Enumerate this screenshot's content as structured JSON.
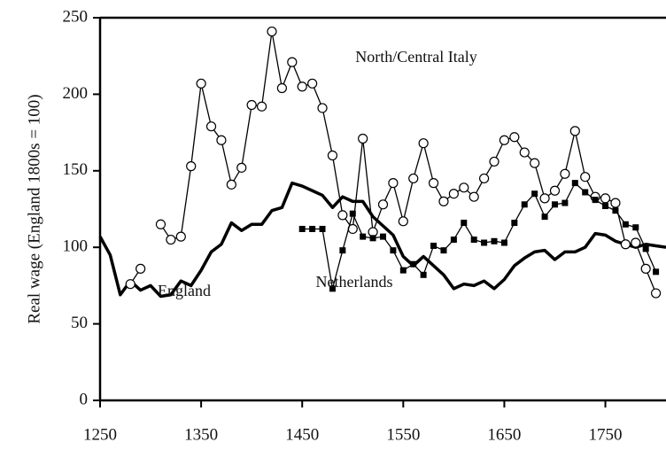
{
  "chart_data": {
    "type": "line",
    "y_label": "Real wage (England 1800s = 100)",
    "xlim": [
      1250,
      1810
    ],
    "ylim": [
      0,
      250
    ],
    "xticks": [
      1250,
      1350,
      1450,
      1550,
      1650,
      1750
    ],
    "yticks": [
      0,
      50,
      100,
      150,
      200,
      250
    ],
    "grid": false,
    "series": [
      {
        "name": "England",
        "color": "#000000",
        "marker": "none",
        "x": [
          1250,
          1260,
          1270,
          1280,
          1290,
          1300,
          1310,
          1320,
          1330,
          1340,
          1350,
          1360,
          1370,
          1380,
          1390,
          1400,
          1410,
          1420,
          1430,
          1440,
          1450,
          1460,
          1470,
          1480,
          1490,
          1500,
          1510,
          1520,
          1530,
          1540,
          1550,
          1560,
          1570,
          1580,
          1590,
          1600,
          1610,
          1620,
          1630,
          1640,
          1650,
          1660,
          1670,
          1680,
          1690,
          1700,
          1710,
          1720,
          1730,
          1740,
          1750,
          1760,
          1770,
          1780,
          1790,
          1800,
          1810
        ],
        "values": [
          107,
          95,
          69,
          78,
          72,
          75,
          68,
          69,
          78,
          75,
          85,
          97,
          102,
          116,
          111,
          115,
          115,
          124,
          126,
          142,
          140,
          137,
          134,
          126,
          133,
          130,
          130,
          120,
          114,
          108,
          94,
          88,
          94,
          88,
          82,
          73,
          76,
          75,
          78,
          73,
          79,
          88,
          93,
          97,
          98,
          92,
          97,
          97,
          100,
          109,
          108,
          104,
          102,
          100,
          102,
          101,
          100
        ]
      },
      {
        "name": "North/Central Italy",
        "color": "#000000",
        "marker": "circle",
        "x": [
          1280,
          1290,
          1300,
          1310,
          1320,
          1330,
          1340,
          1350,
          1360,
          1370,
          1380,
          1390,
          1400,
          1410,
          1420,
          1430,
          1440,
          1450,
          1460,
          1470,
          1480,
          1490,
          1500,
          1510,
          1520,
          1530,
          1540,
          1550,
          1560,
          1570,
          1580,
          1590,
          1600,
          1610,
          1620,
          1630,
          1640,
          1650,
          1660,
          1670,
          1680,
          1690,
          1700,
          1710,
          1720,
          1730,
          1740,
          1750,
          1760,
          1770,
          1780,
          1790,
          1800
        ],
        "values": [
          76,
          86,
          null,
          115,
          105,
          107,
          153,
          207,
          179,
          170,
          141,
          152,
          193,
          192,
          241,
          204,
          221,
          205,
          207,
          191,
          160,
          121,
          112,
          171,
          110,
          128,
          142,
          117,
          145,
          168,
          142,
          130,
          135,
          139,
          133,
          145,
          156,
          170,
          172,
          162,
          155,
          132,
          137,
          148,
          176,
          146,
          133,
          132,
          129,
          102,
          103,
          86,
          70
        ]
      },
      {
        "name": "Netherlands",
        "color": "#000000",
        "marker": "square",
        "x": [
          1450,
          1460,
          1470,
          1480,
          1490,
          1500,
          1510,
          1520,
          1530,
          1540,
          1550,
          1560,
          1570,
          1580,
          1590,
          1600,
          1610,
          1620,
          1630,
          1640,
          1650,
          1660,
          1670,
          1680,
          1690,
          1700,
          1710,
          1720,
          1730,
          1740,
          1750,
          1760,
          1770,
          1780,
          1790,
          1800
        ],
        "values": [
          112,
          112,
          112,
          73,
          98,
          122,
          107,
          106,
          107,
          98,
          85,
          89,
          82,
          101,
          98,
          105,
          116,
          105,
          103,
          104,
          103,
          116,
          128,
          135,
          120,
          128,
          129,
          142,
          136,
          131,
          127,
          124,
          115,
          113,
          99,
          84
        ]
      }
    ]
  }
}
